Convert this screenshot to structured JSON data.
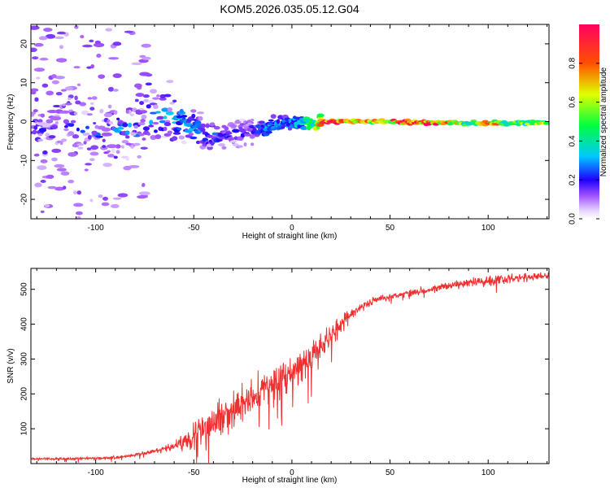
{
  "figure": {
    "title": "KOM5.2026.035.05.12.G04"
  },
  "colors": {
    "snr_line": "#f03030",
    "colormap": [
      "#f0f0ff",
      "#c8a0ff",
      "#9000ff",
      "#1010ff",
      "#00d8ff",
      "#00ff60",
      "#e8ff00",
      "#ff6000",
      "#ff0050"
    ]
  },
  "chart_data": [
    {
      "type": "heatmap",
      "title": "KOM5.2026.035.05.12.G04",
      "xlabel": "Height of straight line (km)",
      "ylabel": "Frequency (Hz)",
      "xlim": [
        -133,
        131
      ],
      "ylim": [
        -25,
        25
      ],
      "xticks": [
        -100,
        -50,
        0,
        50,
        100
      ],
      "yticks": [
        -20,
        -10,
        0,
        10,
        20
      ],
      "colorbar": {
        "label": "Normalized spectral amplitude",
        "range": [
          0,
          1
        ],
        "ticks": [
          0.0,
          0.2,
          0.4,
          0.6,
          0.8
        ]
      },
      "frequency_track": [
        [
          -120,
          -1.5
        ],
        [
          -100,
          -2.5
        ],
        [
          -85,
          -2.0
        ],
        [
          -75,
          -1.0
        ],
        [
          -65,
          1.5
        ],
        [
          -55,
          0.0
        ],
        [
          -45,
          -3.0
        ],
        [
          -35,
          -4.0
        ],
        [
          -25,
          -2.5
        ],
        [
          -15,
          -2.0
        ],
        [
          -5,
          -0.5
        ],
        [
          0,
          -0.5
        ],
        [
          10,
          -0.3
        ],
        [
          20,
          0.0
        ],
        [
          40,
          0.0
        ],
        [
          60,
          -0.2
        ],
        [
          80,
          -0.3
        ],
        [
          100,
          -0.5
        ],
        [
          131,
          -0.2
        ]
      ],
      "amplitude_track": [
        [
          -120,
          0.2
        ],
        [
          -100,
          0.25
        ],
        [
          -80,
          0.3
        ],
        [
          -60,
          0.35
        ],
        [
          -40,
          0.25
        ],
        [
          -30,
          0.2
        ],
        [
          -20,
          0.2
        ],
        [
          -10,
          0.3
        ],
        [
          0,
          0.3
        ],
        [
          10,
          0.5
        ],
        [
          20,
          1.0
        ],
        [
          45,
          0.6
        ],
        [
          60,
          1.0
        ],
        [
          75,
          0.85
        ],
        [
          90,
          0.5
        ],
        [
          100,
          0.85
        ],
        [
          110,
          0.5
        ],
        [
          131,
          0.6
        ]
      ]
    },
    {
      "type": "line",
      "xlabel": "Height of straight line (km)",
      "ylabel": "SNR (v/v)",
      "xlim": [
        -133,
        131
      ],
      "ylim": [
        0,
        560
      ],
      "xticks": [
        -100,
        -50,
        0,
        50,
        100
      ],
      "yticks": [
        100,
        200,
        300,
        400,
        500
      ],
      "series": [
        {
          "name": "SNR",
          "trend": [
            [
              -133,
              14
            ],
            [
              -110,
              14
            ],
            [
              -90,
              17
            ],
            [
              -80,
              25
            ],
            [
              -70,
              35
            ],
            [
              -60,
              50
            ],
            [
              -50,
              80
            ],
            [
              -40,
              120
            ],
            [
              -30,
              150
            ],
            [
              -20,
              190
            ],
            [
              -10,
              230
            ],
            [
              0,
              260
            ],
            [
              10,
              300
            ],
            [
              20,
              370
            ],
            [
              30,
              430
            ],
            [
              40,
              465
            ],
            [
              50,
              480
            ],
            [
              60,
              490
            ],
            [
              70,
              500
            ],
            [
              80,
              510
            ],
            [
              90,
              518
            ],
            [
              100,
              525
            ],
            [
              110,
              530
            ],
            [
              120,
              535
            ],
            [
              131,
              538
            ]
          ],
          "noise": [
            [
              -133,
              5
            ],
            [
              -70,
              10
            ],
            [
              -60,
              20
            ],
            [
              -50,
              70
            ],
            [
              -40,
              90
            ],
            [
              -30,
              85
            ],
            [
              -20,
              90
            ],
            [
              -10,
              80
            ],
            [
              0,
              85
            ],
            [
              10,
              95
            ],
            [
              20,
              60
            ],
            [
              30,
              25
            ],
            [
              50,
              15
            ],
            [
              90,
              20
            ],
            [
              100,
              30
            ],
            [
              131,
              15
            ]
          ]
        }
      ]
    }
  ]
}
